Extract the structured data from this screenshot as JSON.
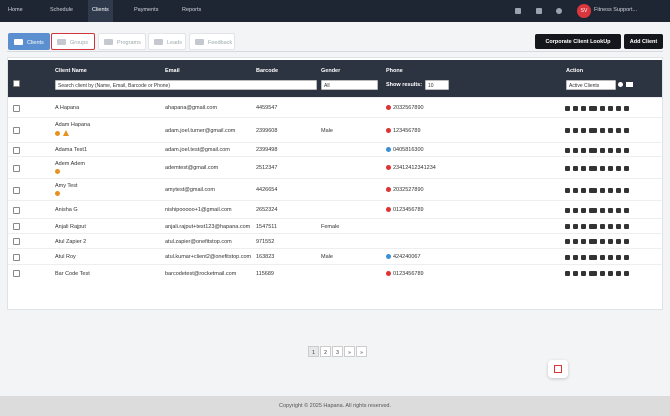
{
  "nav": {
    "items": [
      "Home",
      "Schedule",
      "Clients",
      "Payments",
      "Reports"
    ],
    "user_initials": "SV",
    "user_name": "Fitness Support..."
  },
  "tabs": [
    "Clients",
    "Groups",
    "Programs",
    "Leads",
    "Feedback"
  ],
  "buttons": [
    "Corporate Client LookUp",
    "Add Client"
  ],
  "table": {
    "columns": [
      "Client Name",
      "Email",
      "Barcode",
      "Gender",
      "Phone",
      "Action"
    ],
    "search_placeholder": "Search client by (Name, Email, Barcode or Phone)",
    "gender_filter": "All",
    "show_results_label": "Show results:",
    "show_results": "10",
    "status_filter": "Active Clients",
    "rows": [
      {
        "name": "A Hapana",
        "email": "ahapana@gmail.com",
        "barcode": "4459547",
        "phone": "2032567890"
      },
      {
        "name": "Adam Hapana",
        "email": "adam.joel.turner@gmail.com",
        "barcode": "2399608",
        "gender": "Male",
        "phone": "123456789"
      },
      {
        "name": "Adama Test1",
        "email": "adam.joel.test@gmail.com",
        "barcode": "2399498",
        "phone": "0405816300"
      },
      {
        "name": "Adem Adem",
        "email": "ademtest@gmail.com",
        "barcode": "2512347",
        "phone": "23412412341234"
      },
      {
        "name": "Amy Test",
        "email": "amytest@gmail.com",
        "barcode": "4426654",
        "phone": "2032527890"
      },
      {
        "name": "Anisha G",
        "email": "nishipooooo+1@gmail.com",
        "barcode": "2652324",
        "phone": "0123456789"
      },
      {
        "name": "Anjali Rajput",
        "email": "anjali.rajput+test123@hapana.com",
        "barcode": "1547511",
        "gender": "Female"
      },
      {
        "name": "Atul Zapier 2",
        "email": "atul.zapier@onefitstop.com",
        "barcode": "971552"
      },
      {
        "name": "Atul Roy",
        "email": "atul.kumar+client2@onefitstop.com",
        "barcode": "163823",
        "gender": "Male",
        "phone": "424240067"
      },
      {
        "name": "Bar Code Test",
        "email": "barcodetest@rocketmail.com",
        "barcode": "115689",
        "phone": "0123456789"
      }
    ]
  },
  "pagination": [
    "1",
    "2",
    "3",
    "»",
    "»"
  ],
  "footer": "Copyright © 2025 Hapana. All rights reserved."
}
